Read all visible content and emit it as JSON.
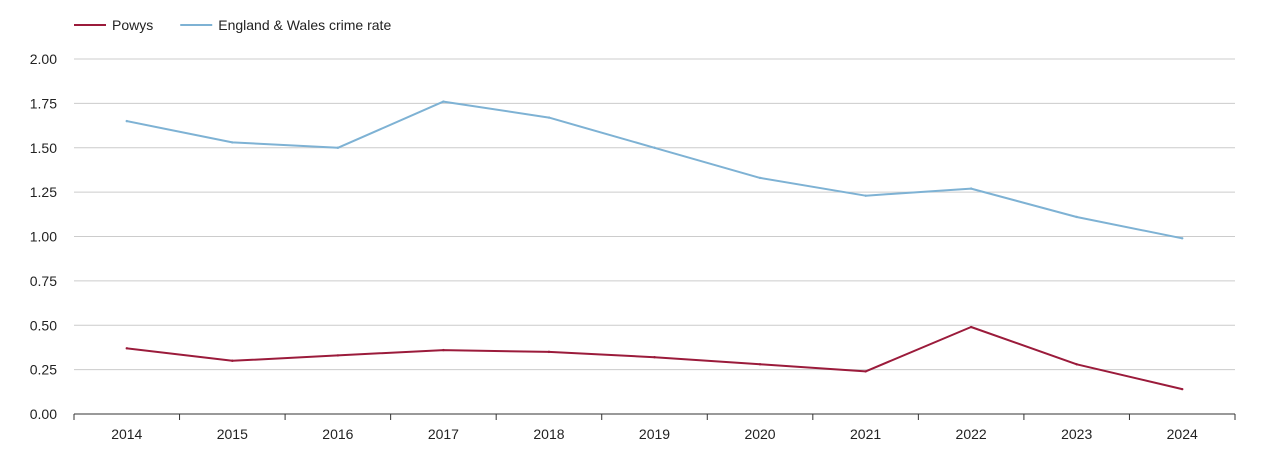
{
  "chart_data": {
    "type": "line",
    "categories": [
      "2014",
      "2015",
      "2016",
      "2017",
      "2018",
      "2019",
      "2020",
      "2021",
      "2022",
      "2023",
      "2024"
    ],
    "ylim": [
      0,
      2
    ],
    "y_ticks": [
      "0.00",
      "0.25",
      "0.50",
      "0.75",
      "1.00",
      "1.25",
      "1.50",
      "1.75",
      "2.00"
    ],
    "grid": true,
    "legend_position": "top-left",
    "series": [
      {
        "name": "Powys",
        "color": "#9b1b3b",
        "values": [
          0.37,
          0.3,
          0.33,
          0.36,
          0.35,
          0.32,
          0.28,
          0.24,
          0.49,
          0.28,
          0.14
        ]
      },
      {
        "name": "England & Wales crime rate",
        "color": "#7eb2d4",
        "values": [
          1.65,
          1.53,
          1.5,
          1.76,
          1.67,
          1.5,
          1.33,
          1.23,
          1.27,
          1.11,
          0.99
        ]
      }
    ]
  }
}
